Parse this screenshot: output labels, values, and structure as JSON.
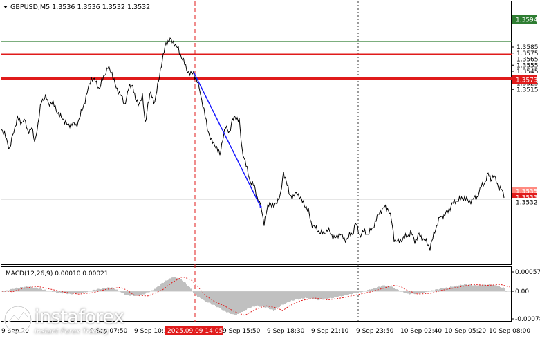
{
  "header": {
    "symbol_line": "GBPUSD,M5  1.3536 1.3536 1.3532 1.3532",
    "menu_icon": "triangle-down-icon"
  },
  "price_axis": {
    "ticks": [
      "1.3585",
      "1.3575",
      "1.3565",
      "1.3555",
      "1.3545",
      "1.3525",
      "1.3515"
    ]
  },
  "levels": [
    {
      "name": "resistance-top",
      "label": "1.3594",
      "price": 1.3594,
      "color": "#2e7d32"
    },
    {
      "name": "resistance-mid",
      "label": "1.3573",
      "price": 1.3573,
      "color": "#e01b1b"
    },
    {
      "name": "level-1535",
      "label": "1.3535",
      "price": 1.3535,
      "color": "#ff8a80"
    },
    {
      "name": "level-1533",
      "label": "1.3533",
      "price": 1.3533,
      "color": "#e01b1b"
    },
    {
      "name": "current-price",
      "label": "1.3532",
      "price": 1.3532,
      "color": "#9e9e9e"
    }
  ],
  "macd": {
    "title": "MACD(12,26,9) 0.00010 0.00021",
    "ticks": [
      "0.00057",
      "0.00",
      "-0.00078"
    ]
  },
  "time_axis": {
    "labels": [
      "9 Sep 20",
      "9 Sep 07:50",
      "9 Sep 10:3",
      "9 Sep 15:50",
      "9 Sep 18:30",
      "9 Sep 21:10",
      "9 Sep 23:50",
      "10 Sep 02:40",
      "10 Sep 05:20",
      "10 Sep 08:00"
    ],
    "highlight": "2025.09.09 14:05"
  },
  "logo": {
    "brand": "instaforex",
    "tagline": "Instant Forex Trading",
    "icon": "instaforex-logo-icon"
  },
  "colors": {
    "price_line": "#000000",
    "trend_line": "#1a1aff",
    "macd_hist": "#c0c0c0",
    "macd_signal": "#e01b1b",
    "grid_dash": "#555555"
  }
}
